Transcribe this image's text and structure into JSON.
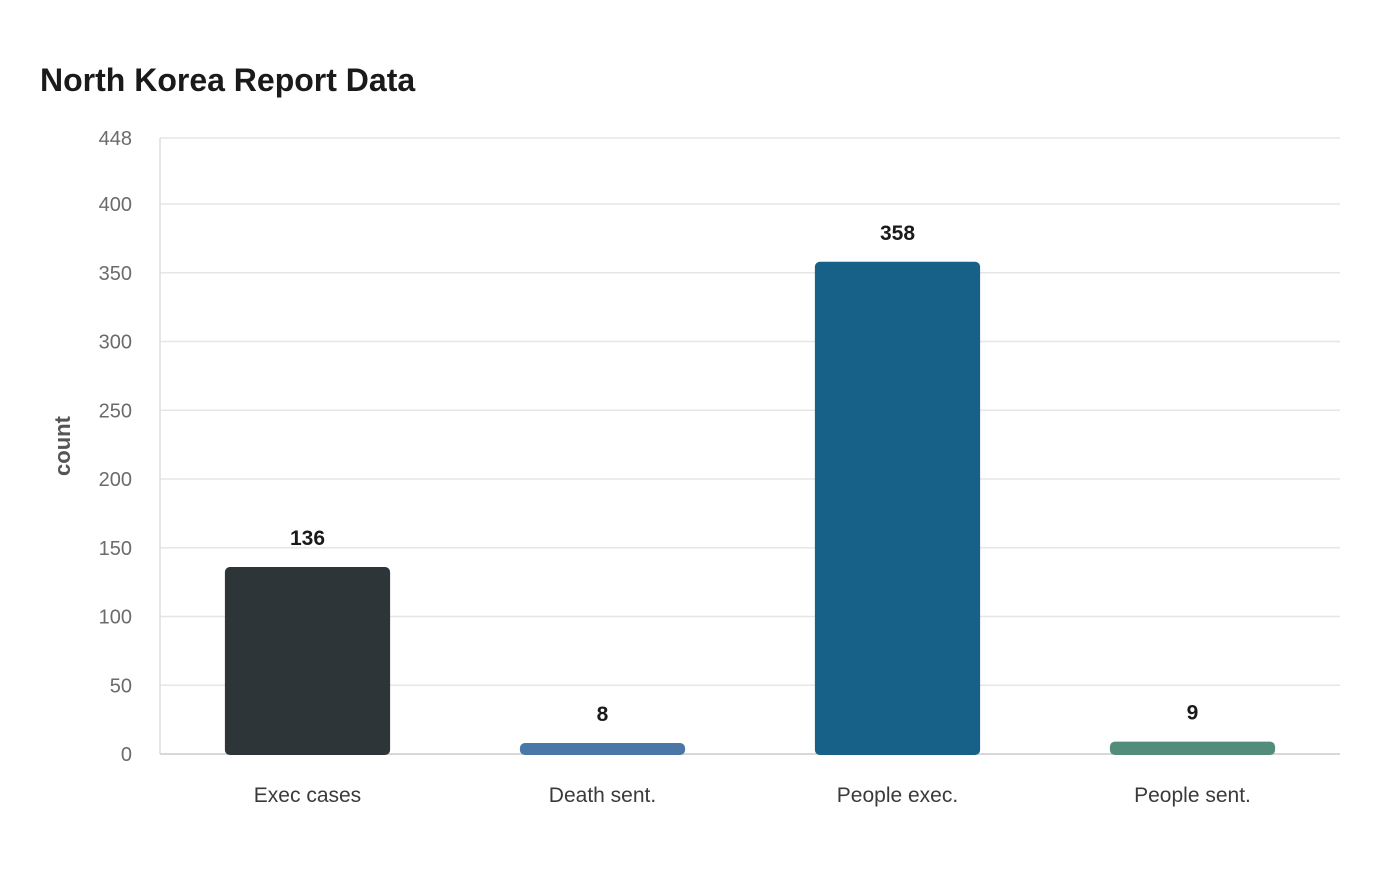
{
  "chart_data": {
    "type": "bar",
    "title": "North Korea Report Data",
    "xlabel": "",
    "ylabel": "count",
    "categories": [
      "Exec cases",
      "Death sent.",
      "People exec.",
      "People sent."
    ],
    "values": [
      136,
      8,
      358,
      9
    ],
    "colors": [
      "#2e3538",
      "#4a76a8",
      "#176189",
      "#528c7b"
    ],
    "ylim": [
      0,
      448
    ],
    "yticks": [
      0,
      50,
      100,
      150,
      200,
      250,
      300,
      350,
      400,
      448
    ],
    "grid": true,
    "legend": "none"
  }
}
